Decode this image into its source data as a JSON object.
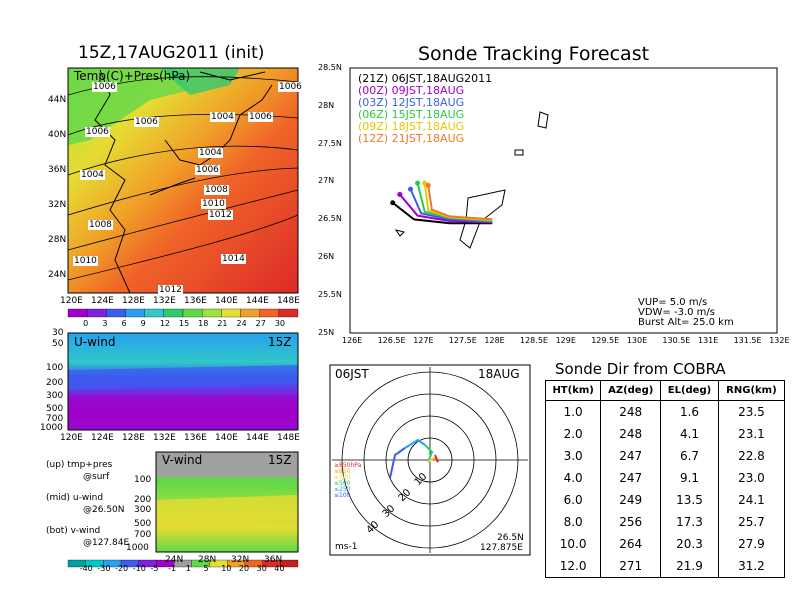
{
  "panels": {
    "map": {
      "title": "15Z,17AUG2011 (init)",
      "field_label": "Temp(C)+Pres(hPa)",
      "lat_ticks": [
        "44N",
        "40N",
        "36N",
        "32N",
        "28N",
        "24N"
      ],
      "lon_ticks": [
        "120E",
        "124E",
        "128E",
        "132E",
        "136E",
        "140E",
        "144E",
        "148E"
      ],
      "isobar_labels": [
        "1006",
        "1006",
        "1006",
        "1004",
        "1006",
        "1006",
        "1004",
        "1004",
        "1006",
        "1008",
        "1010",
        "1012",
        "1008",
        "1014",
        "1010",
        "1012"
      ],
      "colorbar_ticks": [
        "0",
        "3",
        "6",
        "9",
        "12",
        "15",
        "18",
        "21",
        "24",
        "27",
        "30"
      ],
      "colorbar_colors": [
        "#a000c8",
        "#8020e0",
        "#3c5cf0",
        "#28a0f0",
        "#30c8c8",
        "#30c870",
        "#60d848",
        "#a0e040",
        "#e6dc32",
        "#f0a028",
        "#f06428",
        "#dc2a28"
      ]
    },
    "u_wind": {
      "label": "U-wind",
      "time": "15Z",
      "pres_ticks": [
        "30",
        "50",
        "100",
        "200",
        "300",
        "500",
        "700",
        "1000"
      ],
      "lon_ticks": [
        "120E",
        "124E",
        "128E",
        "132E",
        "136E",
        "140E",
        "144E",
        "148E"
      ]
    },
    "v_wind": {
      "label": "V-wind",
      "time": "15Z",
      "pres_ticks": [
        "100",
        "200",
        "300",
        "500",
        "700",
        "1000"
      ],
      "lat_ticks": [
        "24N",
        "28N",
        "32N",
        "36N"
      ]
    },
    "notes": [
      {
        "a": "(up) tmp+pres",
        "b": "@surf"
      },
      {
        "a": "(mid) u-wind",
        "b": "@26.50N"
      },
      {
        "a": "(bot) v-wind",
        "b": "@127.84E"
      }
    ],
    "wind_colorbar_ticks": [
      "-40",
      "-30",
      "-20",
      "-10",
      "-5",
      "-1",
      "1",
      "5",
      "10",
      "20",
      "30",
      "40"
    ],
    "wind_colorbar_colors": [
      "#00a0a0",
      "#00c8c8",
      "#28a0f0",
      "#3c5cf0",
      "#8020e0",
      "#a000c8",
      "#a0a0a0",
      "#60d848",
      "#e6dc32",
      "#f0a028",
      "#f06428",
      "#dc2a28",
      "#c81e1e"
    ]
  },
  "tracking": {
    "title": "Sonde Tracking Forecast",
    "lat_ticks": [
      "28.5N",
      "28N",
      "27.5N",
      "27N",
      "26.5N",
      "26N",
      "25.5N",
      "25N"
    ],
    "lon_ticks": [
      "126E",
      "126.5E",
      "127E",
      "127.5E",
      "128E",
      "128.5E",
      "129E",
      "129.5E",
      "130E",
      "130.5E",
      "131E",
      "131.5E",
      "132E"
    ],
    "legend": [
      {
        "text": "(21Z) 06JST,18AUG2011",
        "color": "#000000"
      },
      {
        "text": "(00Z) 09JST,18AUG",
        "color": "#a000c8"
      },
      {
        "text": "(03Z) 12JST,18AUG",
        "color": "#3c5cf0"
      },
      {
        "text": "(06Z) 15JST,18AUG",
        "color": "#30c840"
      },
      {
        "text": "(09Z) 18JST,18AUG",
        "color": "#e6c800"
      },
      {
        "text": "(12Z) 21JST,18AUG",
        "color": "#f07828"
      }
    ],
    "params": [
      "VUP= 5.0 m/s",
      "VDW= -3.0 m/s",
      "Burst Alt= 25.0 km"
    ]
  },
  "polar": {
    "time": "06JST",
    "date": "18AUG",
    "ring_labels": [
      "10",
      "20",
      "30",
      "40"
    ],
    "levels": [
      {
        "text": "≥850hPa",
        "color": "#dc2a28"
      },
      {
        "text": "≥850",
        "color": "#f0a028"
      },
      {
        "text": "≥700",
        "color": "#e6dc32"
      },
      {
        "text": "≤500",
        "color": "#30c870"
      },
      {
        "text": "≤250",
        "color": "#28a0f0"
      },
      {
        "text": "≤100",
        "color": "#3c5cf0"
      }
    ],
    "location_lat": "26.5N",
    "location_lon": "127.875E",
    "unit": "ms-1"
  },
  "table": {
    "title": "Sonde Dir from COBRA",
    "headers": [
      "HT(km)",
      "AZ(deg)",
      "EL(deg)",
      "RNG(km)"
    ],
    "rows": [
      [
        "1.0",
        "248",
        "1.6",
        "23.5"
      ],
      [
        "2.0",
        "248",
        "4.1",
        "23.1"
      ],
      [
        "3.0",
        "247",
        "6.7",
        "22.8"
      ],
      [
        "4.0",
        "247",
        "9.1",
        "23.0"
      ],
      [
        "6.0",
        "249",
        "13.5",
        "24.1"
      ],
      [
        "8.0",
        "256",
        "17.3",
        "25.7"
      ],
      [
        "10.0",
        "264",
        "20.3",
        "27.9"
      ],
      [
        "12.0",
        "271",
        "21.9",
        "31.2"
      ]
    ]
  },
  "chart_data": [
    {
      "type": "table",
      "title": "Sonde Dir from COBRA",
      "columns": [
        "HT(km)",
        "AZ(deg)",
        "EL(deg)",
        "RNG(km)"
      ],
      "rows": [
        [
          1.0,
          248,
          1.6,
          23.5
        ],
        [
          2.0,
          248,
          4.1,
          23.1
        ],
        [
          3.0,
          247,
          6.7,
          22.8
        ],
        [
          4.0,
          247,
          9.1,
          23.0
        ],
        [
          6.0,
          249,
          13.5,
          24.1
        ],
        [
          8.0,
          256,
          17.3,
          25.7
        ],
        [
          10.0,
          264,
          20.3,
          27.9
        ],
        [
          12.0,
          271,
          21.9,
          31.2
        ]
      ]
    },
    {
      "type": "line",
      "title": "Sonde Tracking Forecast",
      "xlim": [
        126,
        132
      ],
      "ylim": [
        25,
        28.5
      ],
      "series": [
        {
          "name": "(21Z) 06JST,18AUG2011",
          "x": [
            128.0,
            127.4,
            126.9,
            126.6
          ],
          "y": [
            26.45,
            26.45,
            26.5,
            26.72
          ]
        },
        {
          "name": "(00Z) 09JST,18AUG",
          "x": [
            128.0,
            127.4,
            126.95,
            126.7
          ],
          "y": [
            26.46,
            26.48,
            26.55,
            26.83
          ]
        },
        {
          "name": "(03Z) 12JST,18AUG",
          "x": [
            128.0,
            127.4,
            127.0,
            126.85
          ],
          "y": [
            26.47,
            26.5,
            26.58,
            26.9
          ]
        },
        {
          "name": "(06Z) 15JST,18AUG",
          "x": [
            128.0,
            127.4,
            127.05,
            126.95
          ],
          "y": [
            26.48,
            26.52,
            26.6,
            26.98
          ]
        },
        {
          "name": "(09Z) 18JST,18AUG",
          "x": [
            128.0,
            127.4,
            127.1,
            127.05
          ],
          "y": [
            26.49,
            26.53,
            26.62,
            26.98
          ]
        },
        {
          "name": "(12Z) 21JST,18AUG",
          "x": [
            128.0,
            127.4,
            127.15,
            127.1
          ],
          "y": [
            26.5,
            26.54,
            26.63,
            26.95
          ]
        }
      ]
    }
  ]
}
